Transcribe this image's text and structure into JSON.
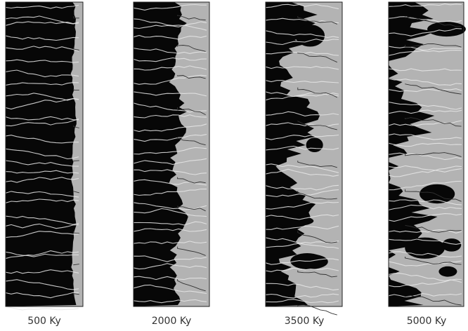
{
  "panels": [
    {
      "label": "500 Ky"
    },
    {
      "label": "2000 Ky"
    },
    {
      "label": "3500 Ky"
    },
    {
      "label": "5000 Ky"
    }
  ]
}
